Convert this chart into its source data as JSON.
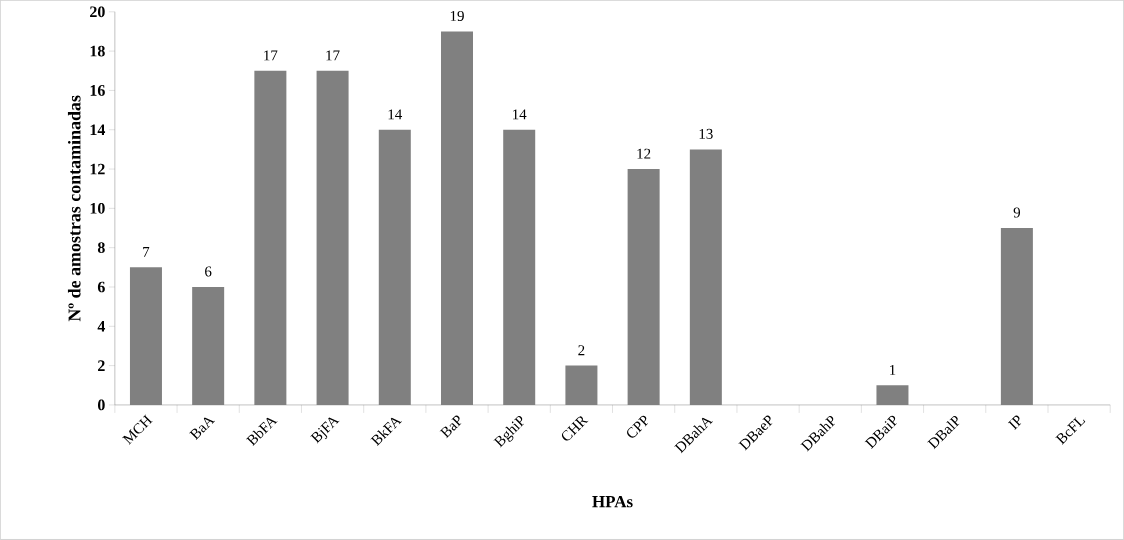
{
  "chart_data": {
    "type": "bar",
    "xlabel": "HPAs",
    "ylabel": "Nº de amostras contaminadas",
    "categories": [
      "MCH",
      "BaA",
      "BbFA",
      "BjFA",
      "BkFA",
      "BaP",
      "BghiP",
      "CHR",
      "CPP",
      "DBahA",
      "DBaeP",
      "DBahP",
      "DBaiP",
      "DBalP",
      "IP",
      "BcFL"
    ],
    "values": [
      7,
      6,
      17,
      17,
      14,
      19,
      14,
      2,
      12,
      13,
      0,
      0,
      1,
      0,
      9,
      0
    ],
    "value_labels": [
      "7",
      "6",
      "17",
      "17",
      "14",
      "19",
      "14",
      "2",
      "12",
      "13",
      null,
      null,
      "1",
      null,
      "9",
      null
    ],
    "color": "#808080",
    "ylim": [
      0,
      20
    ],
    "yticks": [
      0,
      2,
      4,
      6,
      8,
      10,
      12,
      14,
      16,
      18,
      20
    ],
    "grid": false
  }
}
